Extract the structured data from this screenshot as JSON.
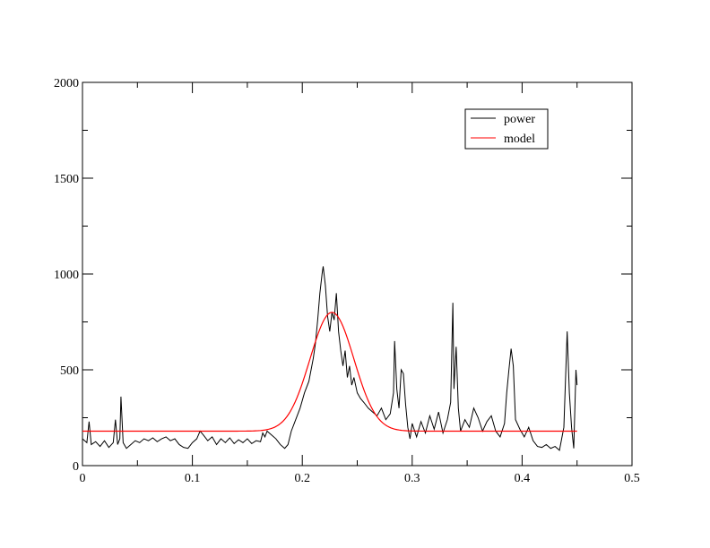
{
  "chart_data": {
    "type": "line",
    "title": "",
    "xlabel": "",
    "ylabel": "",
    "xlim": [
      0,
      0.5
    ],
    "ylim": [
      0,
      2000
    ],
    "x_ticks": [
      0,
      0.1,
      0.2,
      0.3,
      0.4,
      0.5
    ],
    "x_tick_labels": [
      "0",
      "0.1",
      "0.2",
      "0.3",
      "0.4",
      "0.5"
    ],
    "y_ticks": [
      0,
      500,
      1000,
      1500,
      2000
    ],
    "y_tick_labels": [
      "0",
      "500",
      "1000",
      "1500",
      "2000"
    ],
    "grid": false,
    "legend_position": "top-right",
    "series": [
      {
        "name": "power",
        "color": "#000000",
        "points": [
          [
            0.0,
            140
          ],
          [
            0.004,
            120
          ],
          [
            0.006,
            230
          ],
          [
            0.008,
            110
          ],
          [
            0.012,
            125
          ],
          [
            0.016,
            100
          ],
          [
            0.02,
            130
          ],
          [
            0.024,
            95
          ],
          [
            0.028,
            120
          ],
          [
            0.03,
            240
          ],
          [
            0.032,
            110
          ],
          [
            0.034,
            140
          ],
          [
            0.035,
            360
          ],
          [
            0.037,
            120
          ],
          [
            0.04,
            90
          ],
          [
            0.044,
            110
          ],
          [
            0.048,
            130
          ],
          [
            0.052,
            120
          ],
          [
            0.056,
            140
          ],
          [
            0.06,
            130
          ],
          [
            0.064,
            145
          ],
          [
            0.068,
            125
          ],
          [
            0.072,
            140
          ],
          [
            0.076,
            150
          ],
          [
            0.08,
            130
          ],
          [
            0.084,
            140
          ],
          [
            0.088,
            110
          ],
          [
            0.092,
            95
          ],
          [
            0.096,
            90
          ],
          [
            0.1,
            120
          ],
          [
            0.104,
            140
          ],
          [
            0.107,
            180
          ],
          [
            0.11,
            160
          ],
          [
            0.114,
            130
          ],
          [
            0.118,
            150
          ],
          [
            0.122,
            110
          ],
          [
            0.126,
            140
          ],
          [
            0.13,
            120
          ],
          [
            0.134,
            145
          ],
          [
            0.138,
            115
          ],
          [
            0.142,
            135
          ],
          [
            0.146,
            120
          ],
          [
            0.15,
            140
          ],
          [
            0.154,
            115
          ],
          [
            0.158,
            130
          ],
          [
            0.162,
            125
          ],
          [
            0.164,
            170
          ],
          [
            0.166,
            150
          ],
          [
            0.168,
            180
          ],
          [
            0.172,
            160
          ],
          [
            0.176,
            140
          ],
          [
            0.18,
            110
          ],
          [
            0.184,
            90
          ],
          [
            0.187,
            110
          ],
          [
            0.19,
            180
          ],
          [
            0.194,
            240
          ],
          [
            0.198,
            300
          ],
          [
            0.202,
            380
          ],
          [
            0.206,
            440
          ],
          [
            0.208,
            500
          ],
          [
            0.21,
            560
          ],
          [
            0.212,
            640
          ],
          [
            0.214,
            760
          ],
          [
            0.216,
            900
          ],
          [
            0.218,
            1000
          ],
          [
            0.219,
            1040
          ],
          [
            0.221,
            940
          ],
          [
            0.223,
            780
          ],
          [
            0.225,
            700
          ],
          [
            0.227,
            800
          ],
          [
            0.229,
            760
          ],
          [
            0.231,
            900
          ],
          [
            0.233,
            700
          ],
          [
            0.235,
            600
          ],
          [
            0.237,
            520
          ],
          [
            0.239,
            600
          ],
          [
            0.241,
            460
          ],
          [
            0.243,
            520
          ],
          [
            0.245,
            420
          ],
          [
            0.247,
            460
          ],
          [
            0.25,
            380
          ],
          [
            0.253,
            350
          ],
          [
            0.256,
            330
          ],
          [
            0.26,
            300
          ],
          [
            0.264,
            280
          ],
          [
            0.268,
            260
          ],
          [
            0.272,
            300
          ],
          [
            0.276,
            240
          ],
          [
            0.28,
            270
          ],
          [
            0.283,
            380
          ],
          [
            0.284,
            650
          ],
          [
            0.286,
            400
          ],
          [
            0.288,
            300
          ],
          [
            0.29,
            500
          ],
          [
            0.292,
            480
          ],
          [
            0.294,
            320
          ],
          [
            0.296,
            200
          ],
          [
            0.298,
            140
          ],
          [
            0.3,
            220
          ],
          [
            0.304,
            150
          ],
          [
            0.308,
            230
          ],
          [
            0.312,
            170
          ],
          [
            0.316,
            260
          ],
          [
            0.32,
            190
          ],
          [
            0.324,
            280
          ],
          [
            0.328,
            170
          ],
          [
            0.332,
            240
          ],
          [
            0.335,
            330
          ],
          [
            0.337,
            850
          ],
          [
            0.338,
            400
          ],
          [
            0.34,
            620
          ],
          [
            0.342,
            300
          ],
          [
            0.344,
            180
          ],
          [
            0.348,
            240
          ],
          [
            0.352,
            200
          ],
          [
            0.356,
            300
          ],
          [
            0.36,
            250
          ],
          [
            0.364,
            180
          ],
          [
            0.368,
            230
          ],
          [
            0.372,
            260
          ],
          [
            0.376,
            180
          ],
          [
            0.38,
            150
          ],
          [
            0.384,
            220
          ],
          [
            0.386,
            380
          ],
          [
            0.388,
            500
          ],
          [
            0.39,
            610
          ],
          [
            0.392,
            520
          ],
          [
            0.394,
            240
          ],
          [
            0.398,
            190
          ],
          [
            0.402,
            150
          ],
          [
            0.406,
            200
          ],
          [
            0.41,
            130
          ],
          [
            0.414,
            100
          ],
          [
            0.418,
            95
          ],
          [
            0.422,
            110
          ],
          [
            0.426,
            90
          ],
          [
            0.43,
            100
          ],
          [
            0.434,
            80
          ],
          [
            0.438,
            200
          ],
          [
            0.441,
            700
          ],
          [
            0.443,
            380
          ],
          [
            0.445,
            200
          ],
          [
            0.447,
            90
          ],
          [
            0.449,
            500
          ],
          [
            0.45,
            420
          ]
        ]
      },
      {
        "name": "model",
        "color": "#ff0000",
        "baseline": 180,
        "peak_height": 620,
        "peak_center": 0.227,
        "peak_width": 0.02,
        "x_range": [
          0,
          0.45
        ]
      }
    ]
  }
}
